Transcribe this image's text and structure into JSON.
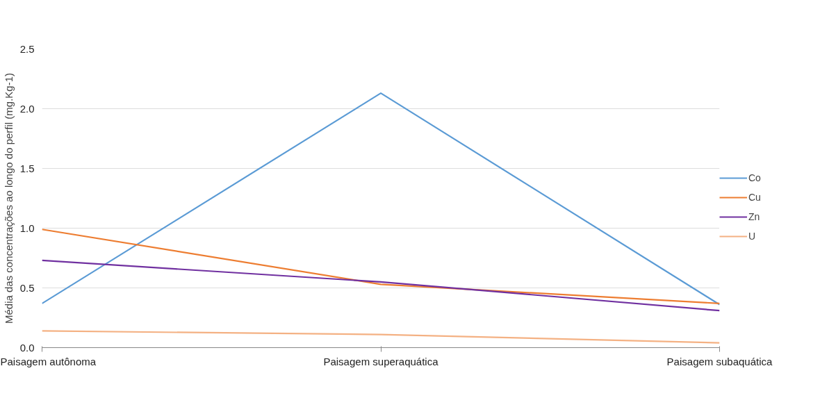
{
  "chart_data": {
    "type": "line",
    "ylabel": "Média das concentrações ao longo do perfil (mg.Kg-1)",
    "categories": [
      "Paisagem autônoma",
      "Paisagem superaquática",
      "Paisagem subaquática"
    ],
    "series": [
      {
        "name": "Co",
        "color": "#5b9bd5",
        "values": [
          0.37,
          2.13,
          0.36
        ]
      },
      {
        "name": "Cu",
        "color": "#ed7d31",
        "values": [
          0.99,
          0.53,
          0.37
        ]
      },
      {
        "name": "Zn",
        "color": "#7030a0",
        "values": [
          0.73,
          0.55,
          0.31
        ]
      },
      {
        "name": "U",
        "color": "#f4b183",
        "values": [
          0.14,
          0.11,
          0.04
        ]
      }
    ],
    "ylim": [
      0,
      2.5
    ],
    "yticks": [
      {
        "value": 0,
        "label": "0.0"
      },
      {
        "value": 0.5,
        "label": "0.5"
      },
      {
        "value": 1,
        "label": "1.0"
      },
      {
        "value": 1.5,
        "label": "1.5"
      },
      {
        "value": 2,
        "label": "2.0"
      },
      {
        "value": 2.5,
        "label": "2.5"
      }
    ],
    "grid": "y",
    "legend": "right"
  }
}
